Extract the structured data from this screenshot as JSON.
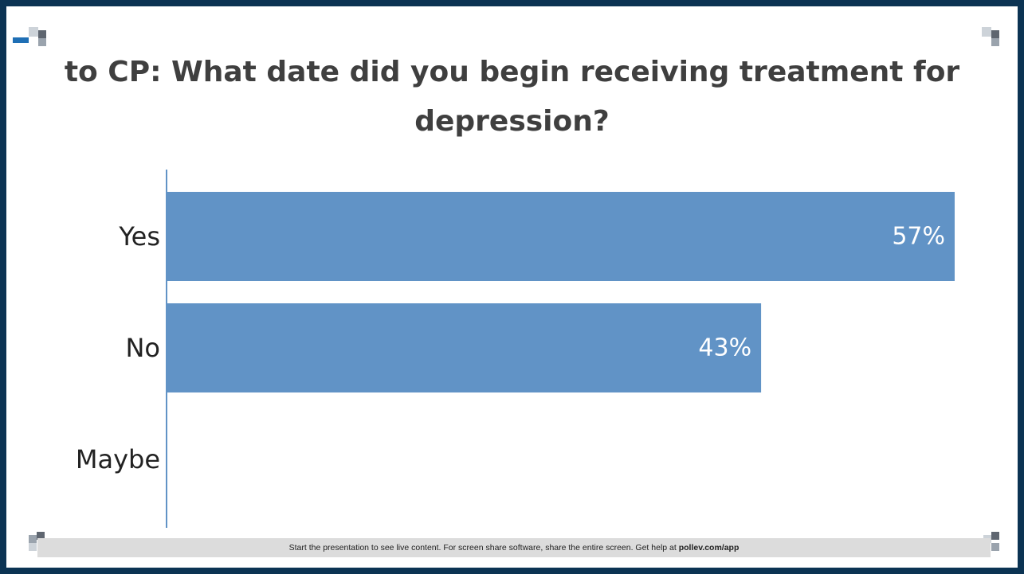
{
  "slide": {
    "footer_text": "Start the presentation to see live content. For screen share software, share the entire screen. Get help at",
    "footer_link": "pollev.com/app"
  },
  "chart_data": {
    "type": "bar",
    "orientation": "horizontal",
    "title_lines": [
      "to CP: What date did you begin receiving treatment for",
      "depression?"
    ],
    "categories": [
      "Yes",
      "No",
      "Maybe"
    ],
    "values": [
      57,
      43,
      0
    ],
    "value_labels": [
      "57%",
      "43%",
      ""
    ],
    "unit": "%",
    "xlim": [
      0,
      57
    ],
    "grid": false,
    "legend": "none",
    "bar_color": "#6193c6",
    "axis_color": "#6193c6",
    "label_color": "#ffffff"
  }
}
